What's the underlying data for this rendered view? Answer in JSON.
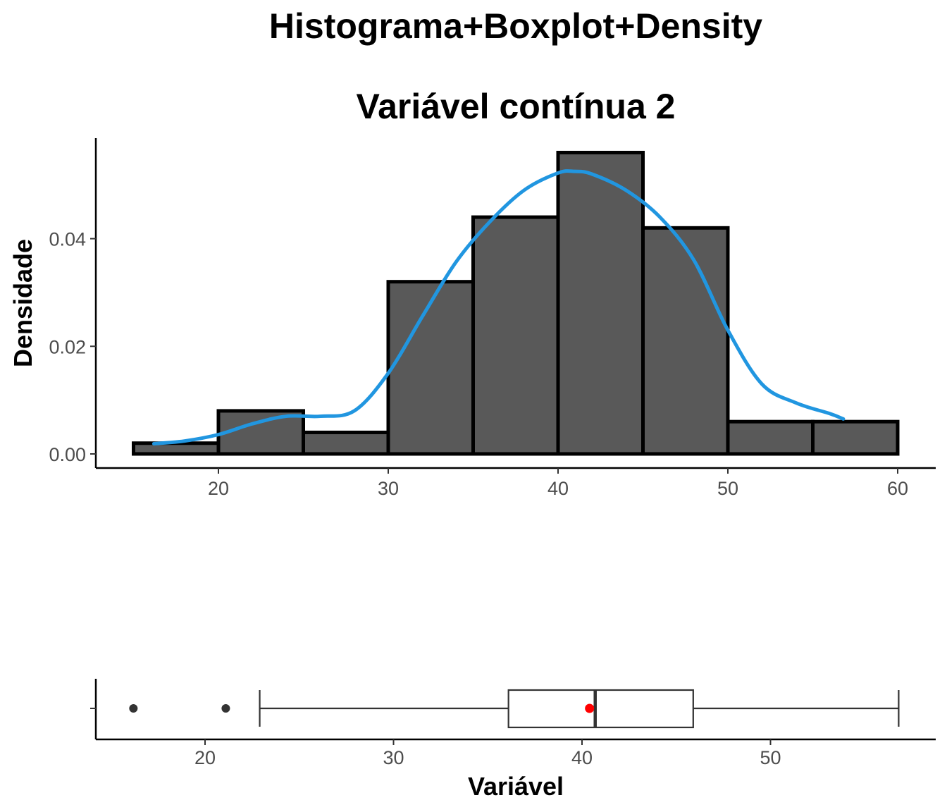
{
  "title": "Histograma+Boxplot+Density",
  "subtitle": "Variável contínua 2",
  "colors": {
    "bar_fill": "#595959",
    "bar_stroke": "#000000",
    "density_line": "#2196e0",
    "mean_point": "#ff0000",
    "outlier": "#333333",
    "box_stroke": "#333333"
  },
  "chart_data": [
    {
      "type": "histogram",
      "ylabel": "Densidade",
      "xlim": [
        15,
        60
      ],
      "ylim": [
        0,
        0.056
      ],
      "grid": false,
      "x_ticks": [
        20,
        30,
        40,
        50,
        60
      ],
      "y_ticks": [
        0.0,
        0.02,
        0.04
      ],
      "y_tick_labels": [
        "0.00",
        "0.02",
        "0.04"
      ],
      "bins": [
        {
          "from": 15,
          "to": 20,
          "density": 0.002
        },
        {
          "from": 20,
          "to": 25,
          "density": 0.008
        },
        {
          "from": 25,
          "to": 30,
          "density": 0.004
        },
        {
          "from": 30,
          "to": 35,
          "density": 0.032
        },
        {
          "from": 35,
          "to": 40,
          "density": 0.044
        },
        {
          "from": 40,
          "to": 45,
          "density": 0.056
        },
        {
          "from": 45,
          "to": 50,
          "density": 0.042
        },
        {
          "from": 50,
          "to": 55,
          "density": 0.006
        },
        {
          "from": 55,
          "to": 60,
          "density": 0.006
        }
      ],
      "density_curve": {
        "x": [
          16.2,
          18,
          20,
          22,
          24,
          26,
          28,
          30,
          32,
          34,
          36,
          38,
          40,
          41,
          42,
          44,
          46,
          48,
          50,
          52,
          54,
          56,
          56.8
        ],
        "y": [
          0.0019,
          0.0024,
          0.0036,
          0.0056,
          0.007,
          0.007,
          0.008,
          0.015,
          0.0255,
          0.0357,
          0.0432,
          0.049,
          0.0522,
          0.0525,
          0.052,
          0.049,
          0.044,
          0.036,
          0.023,
          0.013,
          0.0095,
          0.0075,
          0.0065
        ]
      }
    },
    {
      "type": "boxplot",
      "xlabel": "Variável",
      "xlim": [
        14.5,
        59.2
      ],
      "x_ticks": [
        20,
        30,
        40,
        50
      ],
      "whisker_low": 22.9,
      "q1": 36.1,
      "median": 40.7,
      "q3": 45.9,
      "whisker_high": 56.8,
      "mean": 40.4,
      "outliers": [
        16.2,
        21.1
      ]
    }
  ]
}
